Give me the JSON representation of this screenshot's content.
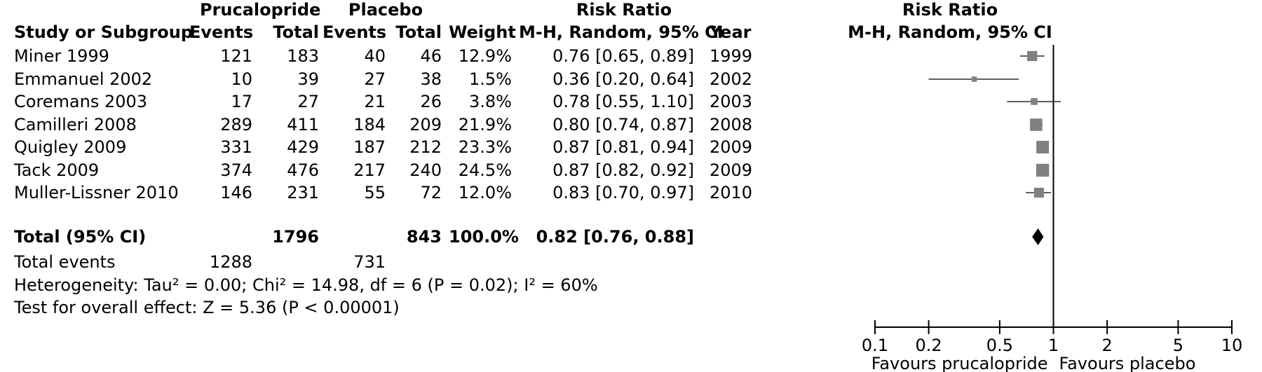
{
  "headers": {
    "group1": "Prucalopride",
    "group2": "Placebo",
    "rr_top": "Risk Ratio",
    "study": "Study or Subgroup",
    "events1": "Events",
    "total1": "Total",
    "events2": "Events",
    "total2": "Total",
    "weight": "Weight",
    "rr_method": "M-H, Random, 95% CI",
    "year": "Year",
    "plot_top": "Risk Ratio",
    "plot_method": "M-H, Random, 95% CI"
  },
  "studies": [
    {
      "name": "Miner 1999",
      "e1": "121",
      "t1": "183",
      "e2": "40",
      "t2": "46",
      "weight": "12.9%",
      "ci": "0.76 [0.65, 0.89]",
      "year": "1999"
    },
    {
      "name": "Emmanuel 2002",
      "e1": "10",
      "t1": "39",
      "e2": "27",
      "t2": "38",
      "weight": "1.5%",
      "ci": "0.36 [0.20, 0.64]",
      "year": "2002"
    },
    {
      "name": "Coremans 2003",
      "e1": "17",
      "t1": "27",
      "e2": "21",
      "t2": "26",
      "weight": "3.8%",
      "ci": "0.78 [0.55, 1.10]",
      "year": "2003"
    },
    {
      "name": "Camilleri 2008",
      "e1": "289",
      "t1": "411",
      "e2": "184",
      "t2": "209",
      "weight": "21.9%",
      "ci": "0.80 [0.74, 0.87]",
      "year": "2008"
    },
    {
      "name": "Quigley 2009",
      "e1": "331",
      "t1": "429",
      "e2": "187",
      "t2": "212",
      "weight": "23.3%",
      "ci": "0.87 [0.81, 0.94]",
      "year": "2009"
    },
    {
      "name": "Tack 2009",
      "e1": "374",
      "t1": "476",
      "e2": "217",
      "t2": "240",
      "weight": "24.5%",
      "ci": "0.87 [0.82, 0.92]",
      "year": "2009"
    },
    {
      "name": "Muller-Lissner 2010",
      "e1": "146",
      "t1": "231",
      "e2": "55",
      "t2": "72",
      "weight": "12.0%",
      "ci": "0.83 [0.70, 0.97]",
      "year": "2010"
    }
  ],
  "total": {
    "label": "Total (95% CI)",
    "t1": "1796",
    "t2": "843",
    "weight": "100.0%",
    "ci": "0.82 [0.76, 0.88]"
  },
  "total_events": {
    "label": "Total events",
    "e1": "1288",
    "e2": "731"
  },
  "heterogeneity": "Heterogeneity: Tau² = 0.00; Chi² = 14.98, df = 6 (P = 0.02); I² = 60%",
  "overall_effect": "Test for overall effect: Z = 5.36 (P < 0.00001)",
  "axis": {
    "favours_left": "Favours prucalopride",
    "favours_right": "Favours placebo"
  },
  "colors": {
    "marker": "#808080",
    "diamond": "#000000",
    "line": "#000000"
  },
  "chart_data": {
    "type": "forest",
    "scale": "log",
    "xlim": [
      0.1,
      10
    ],
    "reference_line": 1,
    "ticks": [
      {
        "value": 0.1,
        "label": "0.1"
      },
      {
        "value": 0.2,
        "label": "0.2"
      },
      {
        "value": 0.5,
        "label": "0.5"
      },
      {
        "value": 1,
        "label": "1"
      },
      {
        "value": 2,
        "label": "2"
      },
      {
        "value": 5,
        "label": "5"
      },
      {
        "value": 10,
        "label": "10"
      }
    ],
    "studies": [
      {
        "name": "Miner 1999",
        "rr": 0.76,
        "lower": 0.65,
        "upper": 0.89,
        "weight": 12.9
      },
      {
        "name": "Emmanuel 2002",
        "rr": 0.36,
        "lower": 0.2,
        "upper": 0.64,
        "weight": 1.5
      },
      {
        "name": "Coremans 2003",
        "rr": 0.78,
        "lower": 0.55,
        "upper": 1.1,
        "weight": 3.8
      },
      {
        "name": "Camilleri 2008",
        "rr": 0.8,
        "lower": 0.74,
        "upper": 0.87,
        "weight": 21.9
      },
      {
        "name": "Quigley 2009",
        "rr": 0.87,
        "lower": 0.81,
        "upper": 0.94,
        "weight": 23.3
      },
      {
        "name": "Tack 2009",
        "rr": 0.87,
        "lower": 0.82,
        "upper": 0.92,
        "weight": 24.5
      },
      {
        "name": "Muller-Lissner 2010",
        "rr": 0.83,
        "lower": 0.7,
        "upper": 0.97,
        "weight": 12.0
      }
    ],
    "pooled": {
      "rr": 0.82,
      "lower": 0.76,
      "upper": 0.88
    }
  }
}
